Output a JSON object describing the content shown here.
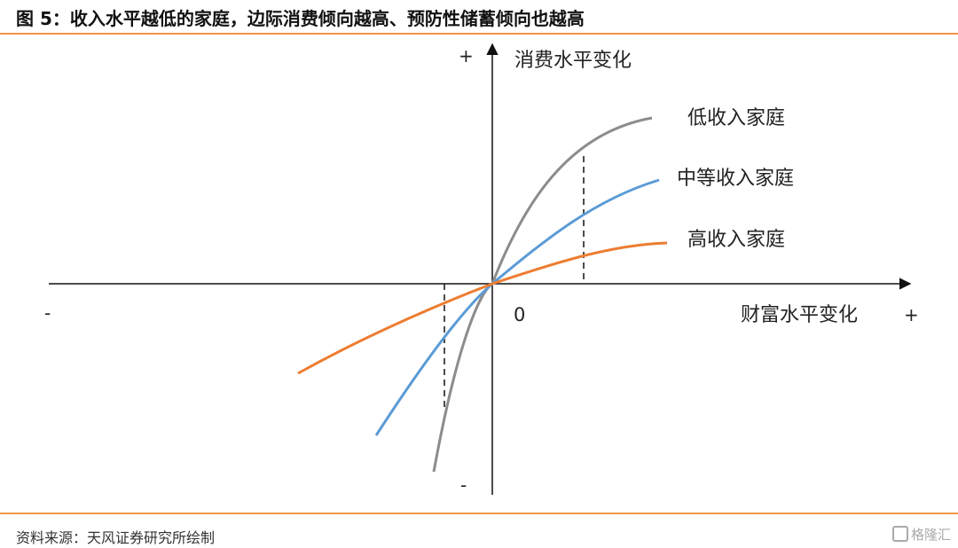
{
  "figure": {
    "title": "图 5：收入水平越低的家庭，边际消费倾向越高、预防性储蓄倾向也越高",
    "source": "资料来源：天风证券研究所绘制",
    "watermark": "格隆汇"
  },
  "diagram": {
    "y_axis_label": "消费水平变化",
    "x_axis_label": "财富水平变化",
    "origin_label": "0",
    "y_plus": "+",
    "y_minus": "-",
    "x_plus": "+",
    "x_minus": "-",
    "curves": [
      {
        "name": "低收入家庭",
        "color": "#8c8c8c"
      },
      {
        "name": "中等收入家庭",
        "color": "#5b9bd5"
      },
      {
        "name": "高收入家庭",
        "color": "#ed7d31"
      }
    ]
  }
}
